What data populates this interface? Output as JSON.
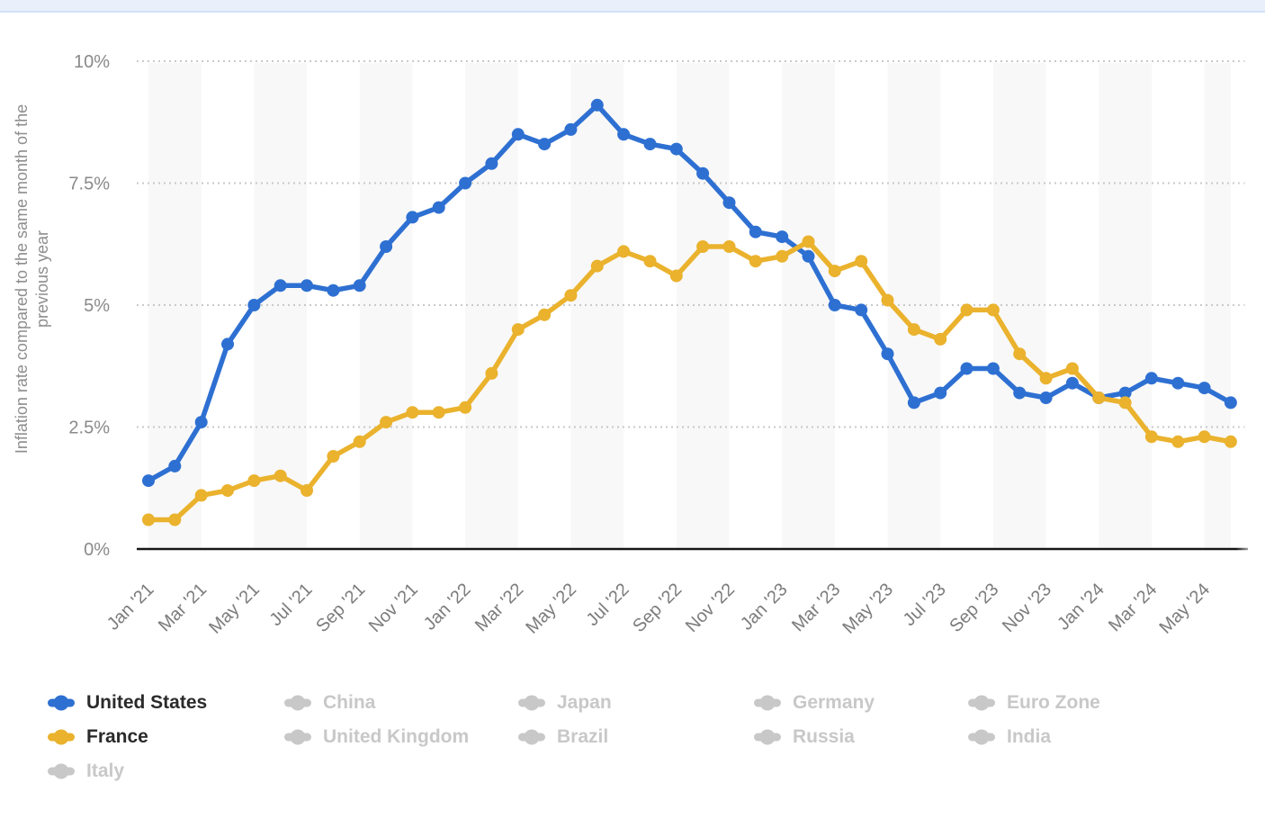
{
  "chart_data": {
    "type": "line",
    "title": "",
    "ylabel": "Inflation rate compared to the same month of the previous year",
    "ylabel_lines": [
      "Inflation rate compared to the same month of the",
      "previous year"
    ],
    "ylim": [
      0,
      10
    ],
    "yticks": [
      "0%",
      "2.5%",
      "5%",
      "7.5%",
      "10%"
    ],
    "ytick_values": [
      0,
      2.5,
      5,
      7.5,
      10
    ],
    "grid": "dotted horizontal gridlines, alternating vertical gray bands",
    "legend_position": "bottom",
    "x_months": [
      "Jan '21",
      "Feb '21",
      "Mar '21",
      "Apr '21",
      "May '21",
      "Jun '21",
      "Jul '21",
      "Aug '21",
      "Sep '21",
      "Oct '21",
      "Nov '21",
      "Dec '21",
      "Jan '22",
      "Feb '22",
      "Mar '22",
      "Apr '22",
      "May '22",
      "Jun '22",
      "Jul '22",
      "Aug '22",
      "Sep '22",
      "Oct '22",
      "Nov '22",
      "Dec '22",
      "Jan '23",
      "Feb '23",
      "Mar '23",
      "Apr '23",
      "May '23",
      "Jun '23",
      "Jul '23",
      "Aug '23",
      "Sep '23",
      "Oct '23",
      "Nov '23",
      "Dec '23",
      "Jan '24",
      "Feb '24",
      "Mar '24",
      "Apr '24",
      "May '24",
      "Jun '24"
    ],
    "x_tick_labels": [
      "Jan '21",
      "Mar '21",
      "May '21",
      "Jul '21",
      "Sep '21",
      "Nov '21",
      "Jan '22",
      "Mar '22",
      "May '22",
      "Jul '22",
      "Sep '22",
      "Nov '22",
      "Jan '23",
      "Mar '23",
      "May '23",
      "Jul '23",
      "Sep '23",
      "Nov '23",
      "Jan '24",
      "Mar '24",
      "May '24"
    ],
    "series": [
      {
        "name": "United States",
        "color": "#2e70d2",
        "values": [
          1.4,
          1.7,
          2.6,
          4.2,
          5.0,
          5.4,
          5.4,
          5.3,
          5.4,
          6.2,
          6.8,
          7.0,
          7.5,
          7.9,
          8.5,
          8.3,
          8.6,
          9.1,
          8.5,
          8.3,
          8.2,
          7.7,
          7.1,
          6.5,
          6.4,
          6.0,
          5.0,
          4.9,
          4.0,
          3.0,
          3.2,
          3.7,
          3.7,
          3.2,
          3.1,
          3.4,
          3.1,
          3.2,
          3.5,
          3.4,
          3.3,
          3.0
        ]
      },
      {
        "name": "France",
        "color": "#eab22d",
        "values": [
          0.6,
          0.6,
          1.1,
          1.2,
          1.4,
          1.5,
          1.2,
          1.9,
          2.2,
          2.6,
          2.8,
          2.8,
          2.9,
          3.6,
          4.5,
          4.8,
          5.2,
          5.8,
          6.1,
          5.9,
          5.6,
          6.2,
          6.2,
          5.9,
          6.0,
          6.3,
          5.7,
          5.9,
          5.1,
          4.5,
          4.3,
          4.9,
          4.9,
          4.0,
          3.5,
          3.7,
          3.1,
          3.0,
          2.3,
          2.2,
          2.3,
          2.2
        ]
      }
    ]
  },
  "legend": {
    "items": [
      {
        "label": "United States",
        "active": true,
        "color": "#2e70d2"
      },
      {
        "label": "France",
        "active": true,
        "color": "#eab22d"
      },
      {
        "label": "Italy",
        "active": false
      },
      {
        "label": "China",
        "active": false
      },
      {
        "label": "United Kingdom",
        "active": false
      },
      {
        "label": "Japan",
        "active": false
      },
      {
        "label": "Brazil",
        "active": false
      },
      {
        "label": "Germany",
        "active": false
      },
      {
        "label": "Russia",
        "active": false
      },
      {
        "label": "Euro Zone",
        "active": false
      },
      {
        "label": "India",
        "active": false
      }
    ],
    "inactive_color": "#c8c8c8"
  },
  "colors": {
    "top_banner": "#e9f0fc",
    "top_banner_border": "#d2e1f7",
    "stripe_band": "#f8f8f8",
    "gridline": "#c9c9c9",
    "axis_line": "#161616",
    "tick_text": "#8a8a8a"
  }
}
